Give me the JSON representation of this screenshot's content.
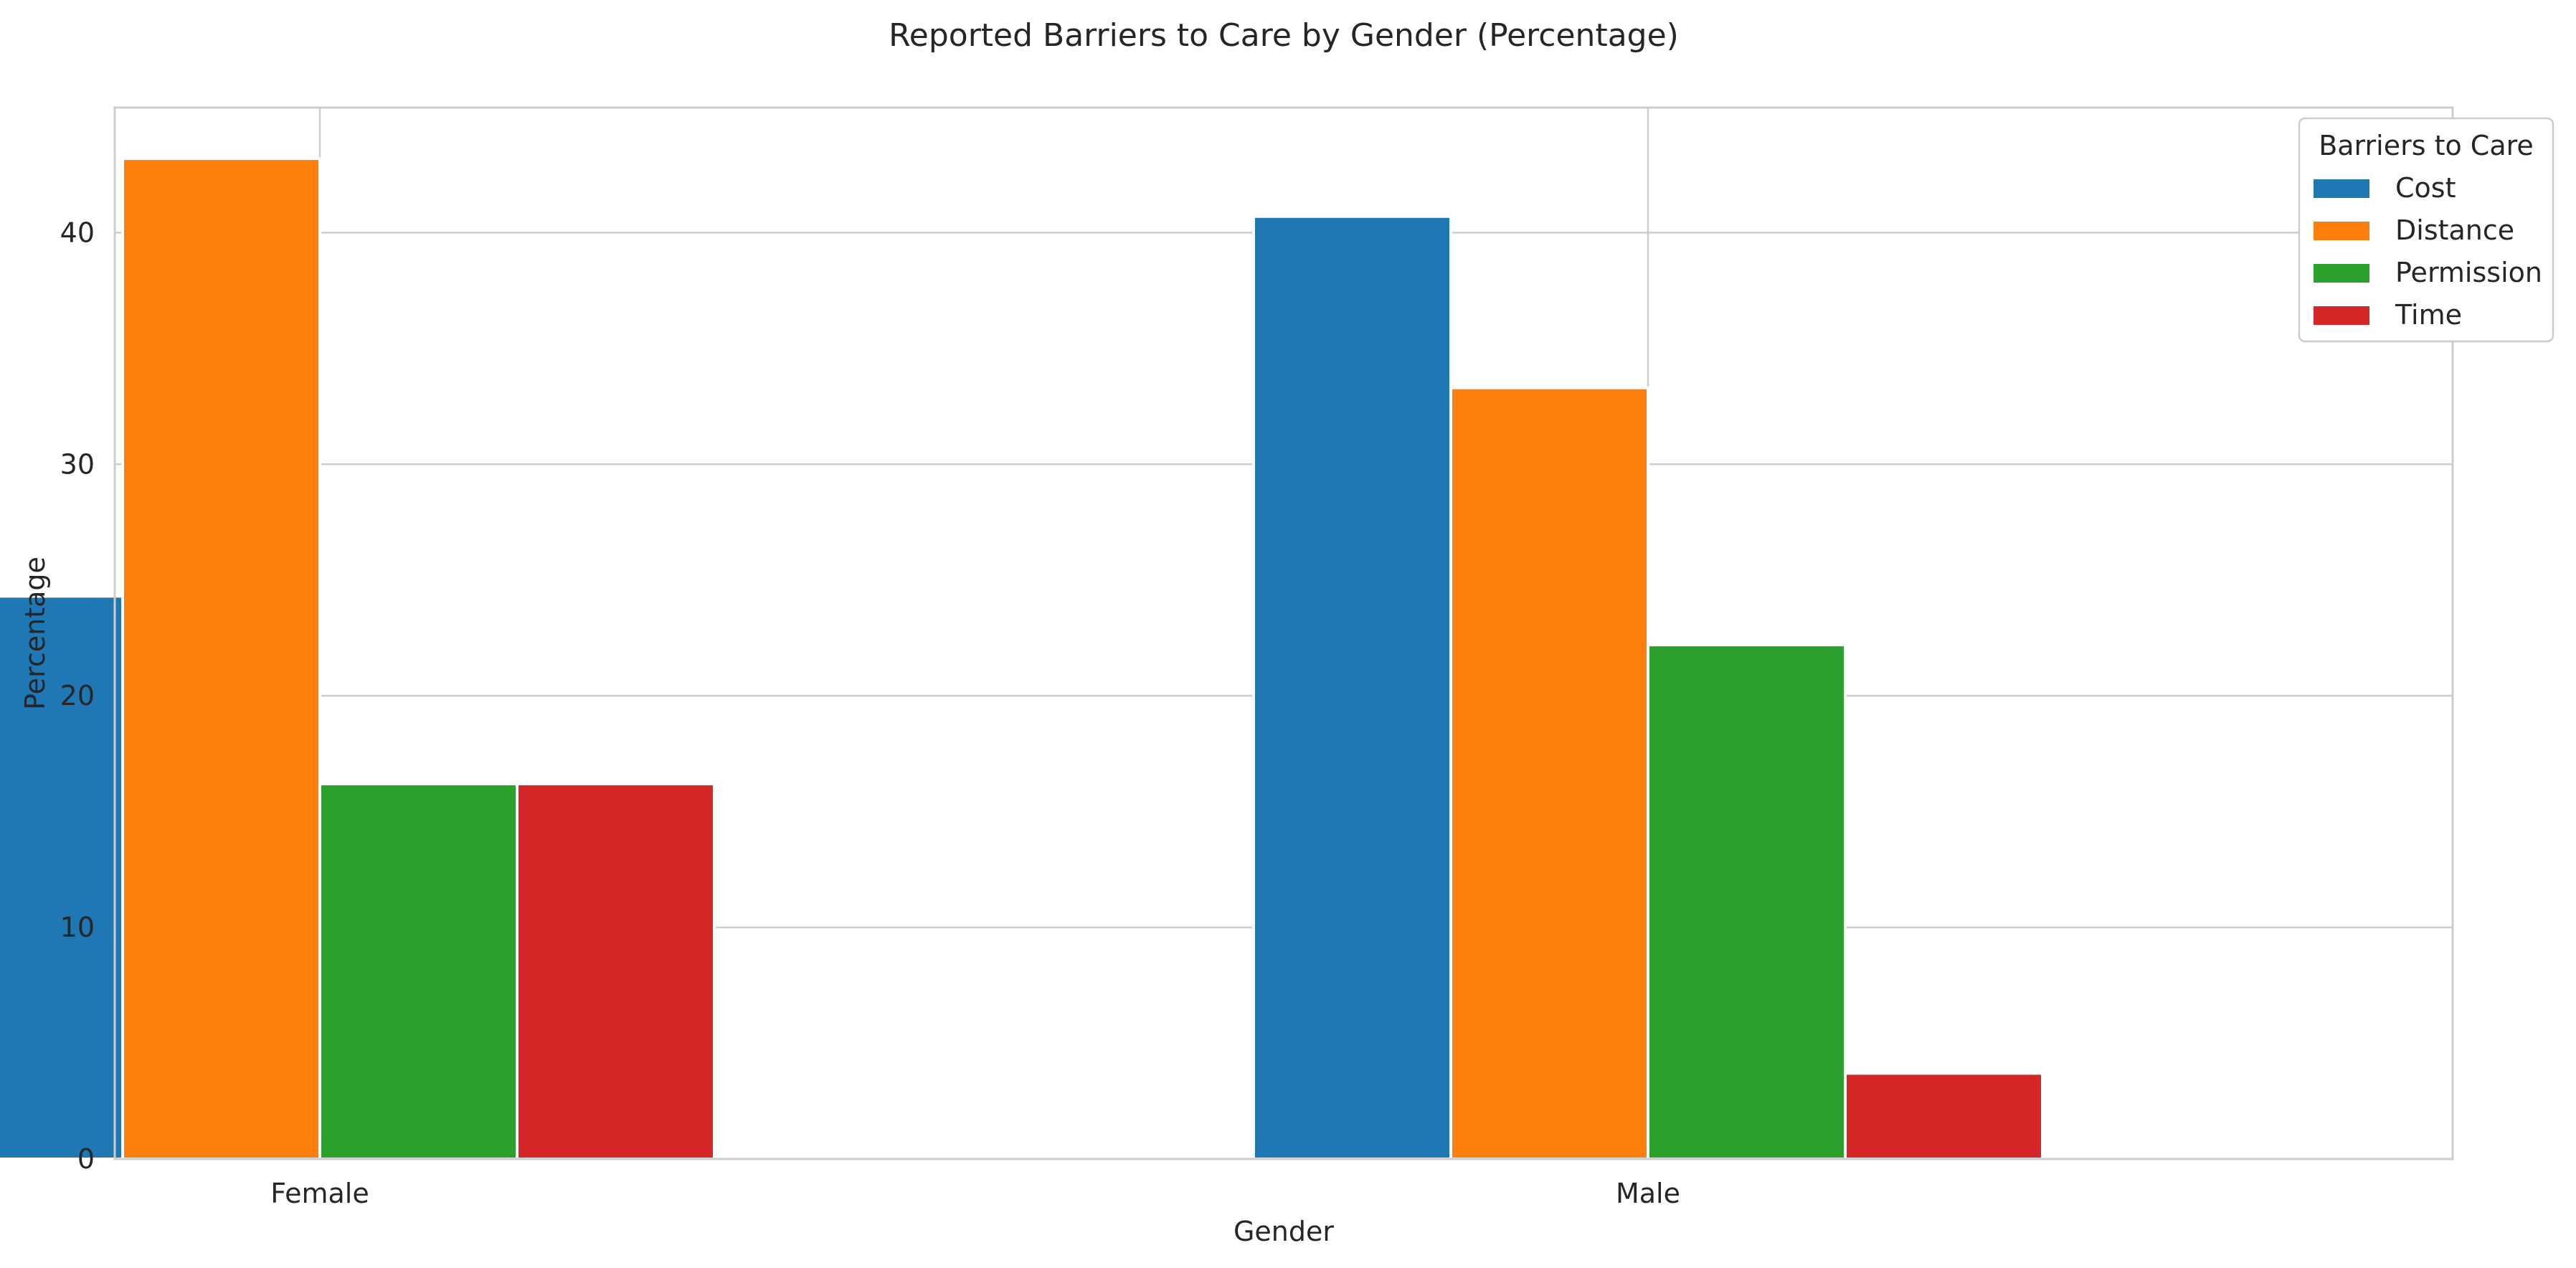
{
  "chart_data": {
    "type": "bar",
    "title": "Reported Barriers to Care by Gender (Percentage)",
    "xlabel": "Gender",
    "ylabel": "Percentage",
    "categories": [
      "Female",
      "Male"
    ],
    "series": [
      {
        "name": "Cost",
        "color": "#1f77b4",
        "values": [
          24.3,
          40.7
        ]
      },
      {
        "name": "Distance",
        "color": "#ff7f0e",
        "values": [
          43.2,
          33.3
        ]
      },
      {
        "name": "Permission",
        "color": "#2ca02c",
        "values": [
          16.2,
          22.2
        ]
      },
      {
        "name": "Time",
        "color": "#d62728",
        "values": [
          16.2,
          3.7
        ]
      }
    ],
    "yticks": [
      0,
      10,
      20,
      30,
      40
    ],
    "ylim": [
      0,
      45.4
    ],
    "grid": true,
    "legend": {
      "title": "Barriers to Care",
      "position": "top-right"
    }
  }
}
